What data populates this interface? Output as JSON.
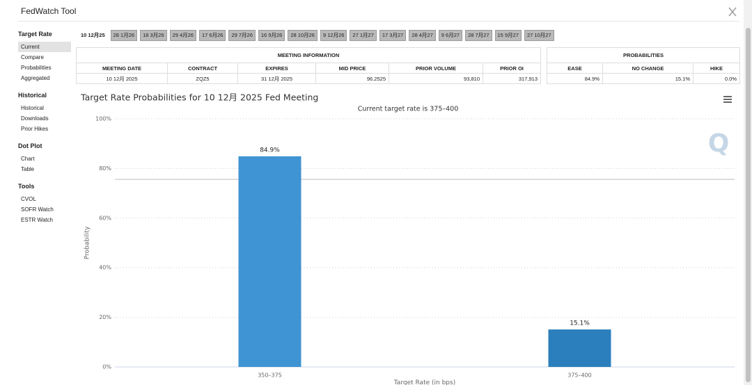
{
  "header": {
    "title": "FedWatch Tool"
  },
  "sidebar": [
    {
      "title": "Target Rate",
      "items": [
        "Current",
        "Compare",
        "Probabilities",
        "Aggregated"
      ]
    },
    {
      "title": "Historical",
      "items": [
        "Historical",
        "Downloads",
        "Prior Hikes"
      ]
    },
    {
      "title": "Dot Plot",
      "items": [
        "Chart",
        "Table"
      ]
    },
    {
      "title": "Tools",
      "items": [
        "CVOL",
        "SOFR Watch",
        "ESTR Watch"
      ]
    }
  ],
  "tabs": [
    "10 12月25",
    "28 1月26",
    "18 3月26",
    "29 4月26",
    "17 6月26",
    "29 7月26",
    "16 9月26",
    "28 10月26",
    "9 12月26",
    "27 1月27",
    "17 3月27",
    "28 4月27",
    "9 6月27",
    "28 7月27",
    "15 9月27",
    "27 10月27"
  ],
  "meeting_table": {
    "title": "MEETING INFORMATION",
    "headers": [
      "MEETING DATE",
      "CONTRACT",
      "EXPIRES",
      "MID PRICE",
      "PRIOR VOLUME",
      "PRIOR OI"
    ],
    "row": [
      "10 12月 2025",
      "ZQZ5",
      "31 12月 2025",
      "96.2525",
      "93,810",
      "317,913"
    ]
  },
  "probabilities_table": {
    "title": "PROBABILITIES",
    "headers": [
      "EASE",
      "NO CHANGE",
      "HIKE"
    ],
    "row": [
      "84.9%",
      "15.1%",
      "0.0%"
    ]
  },
  "chart_data": {
    "type": "bar",
    "title": "Target Rate Probabilities for 10 12月 2025 Fed Meeting",
    "subtitle": "Current target rate is 375–400",
    "x_label": "Target Rate (in bps)",
    "y_label": "Probability",
    "categories": [
      "350–375",
      "375–400"
    ],
    "values": [
      84.9,
      15.1
    ],
    "value_labels": [
      "84.9%",
      "15.1%"
    ],
    "colors": [
      "#3f94d3",
      "#2b7fbd"
    ],
    "reference_line": 75.6,
    "ylim": [
      0,
      100
    ],
    "yticks": [
      {
        "value": 0,
        "label": "0%"
      },
      {
        "value": 20,
        "label": "20%"
      },
      {
        "value": 40,
        "label": "40%"
      },
      {
        "value": 60,
        "label": "60%"
      },
      {
        "value": 80,
        "label": "80%"
      },
      {
        "value": 100,
        "label": "100%"
      }
    ],
    "grid": true
  }
}
